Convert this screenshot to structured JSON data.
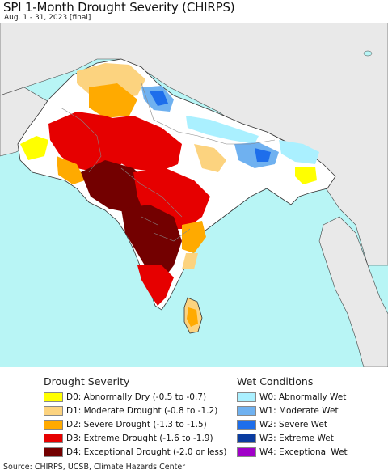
{
  "header": {
    "title": "SPI 1-Month Drought Severity (CHIRPS)",
    "subtitle": "Aug. 1 - 31, 2023 [final]"
  },
  "colors": {
    "ocean": "#b8f5f5",
    "land": "#ffffff",
    "outside_land": "#e9e9e9",
    "border": "#333333",
    "state_border": "#888888"
  },
  "legend": {
    "drought": {
      "heading": "Drought Severity",
      "items": [
        {
          "label": "D0: Abnormally Dry (-0.5 to -0.7)",
          "color": "#ffff00"
        },
        {
          "label": "D1: Moderate Drought (-0.8 to -1.2)",
          "color": "#fcd37f"
        },
        {
          "label": "D2: Severe Drought (-1.3 to -1.5)",
          "color": "#ffaa00"
        },
        {
          "label": "D3: Extreme Drought (-1.6 to -1.9)",
          "color": "#e60000"
        },
        {
          "label": "D4: Exceptional Drought (-2.0 or less)",
          "color": "#730000"
        }
      ]
    },
    "wet": {
      "heading": "Wet Conditions",
      "items": [
        {
          "label": "W0: Abnormally Wet",
          "color": "#aaf0ff"
        },
        {
          "label": "W1: Moderate Wet",
          "color": "#6fb1f0"
        },
        {
          "label": "W2: Severe Wet",
          "color": "#1e6eeb"
        },
        {
          "label": "W3: Extreme Wet",
          "color": "#0a3ca0"
        },
        {
          "label": "W4: Exceptional Wet",
          "color": "#a000c8"
        }
      ]
    }
  },
  "footer": {
    "source": "Source: CHIRPS, UCSB, Climate Hazards Center"
  }
}
